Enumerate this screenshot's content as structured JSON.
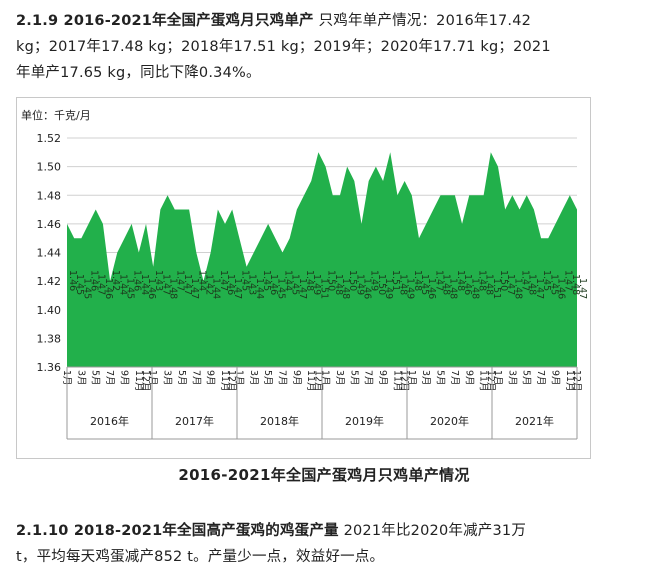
{
  "section1": {
    "heading": "2.1.9 2016-2021年全国产蛋鸡月只鸡单产",
    "text_line1": " 只鸡年单产情况：2016年17.42",
    "text_line2": "kg；2017年17.48 kg；2018年17.51 kg；2019年；2020年17.71 kg；2021",
    "text_line3": "年单产17.65 kg，同比下降0.34%。"
  },
  "caption": "2016-2021年全国产蛋鸡月只鸡单产情况",
  "section2": {
    "heading": "2.1.10 2018-2021年全国高产蛋鸡的鸡蛋产量",
    "text_line1": " 2021年比2020年减产31万",
    "text_line2": "t，平均每天鸡蛋减产852 t。产量少一点，效益好一点。"
  },
  "chart_data": {
    "type": "area",
    "unit_label": "单位：千克/月",
    "ylim": [
      1.36,
      1.52
    ],
    "yticks": [
      "1.36",
      "1.38",
      "1.40",
      "1.42",
      "1.44",
      "1.46",
      "1.48",
      "1.50",
      "1.52"
    ],
    "grid": true,
    "fill_color": "#22b04b",
    "years": [
      "2016年",
      "2017年",
      "2018年",
      "2019年",
      "2020年",
      "2021年"
    ],
    "month_labels": [
      "1月",
      "2月",
      "3月",
      "4月",
      "5月",
      "6月",
      "7月",
      "8月",
      "9月",
      "10月",
      "11月",
      "12月"
    ],
    "series": [
      {
        "values": [
          1.46,
          1.45,
          1.45,
          1.46,
          1.47,
          1.46,
          1.42,
          1.44,
          1.45,
          1.46,
          1.44,
          1.46,
          1.43,
          1.47,
          1.48,
          1.47,
          1.47,
          1.47,
          1.44,
          1.42,
          1.44,
          1.47,
          1.46,
          1.47,
          1.45,
          1.43,
          1.44,
          1.45,
          1.46,
          1.45,
          1.44,
          1.45,
          1.47,
          1.48,
          1.49,
          1.51,
          1.5,
          1.48,
          1.48,
          1.5,
          1.49,
          1.46,
          1.49,
          1.5,
          1.49,
          1.51,
          1.48,
          1.49,
          1.48,
          1.45,
          1.46,
          1.47,
          1.48,
          1.48,
          1.48,
          1.46,
          1.48,
          1.48,
          1.48,
          1.51,
          1.5,
          1.47,
          1.48,
          1.47,
          1.48,
          1.47,
          1.45,
          1.45,
          1.46,
          1.47,
          1.48,
          1.47
        ],
        "data_labels": [
          "1.46",
          "1.45",
          "1.45",
          "1.46",
          "1.47",
          "1.46",
          "1.42",
          "1.44",
          "1.45",
          "1.46",
          "1.44",
          "1.46",
          "1.43",
          "1.47",
          "1.48",
          "1.47",
          "1.47",
          "1.47",
          "1.44",
          "1.42",
          "1.44",
          "1.47",
          "1.46",
          "1.47",
          "1.45",
          "1.43",
          "1.44",
          "1.45",
          "1.46",
          "1.45",
          "1.44",
          "1.45",
          "1.47",
          "1.48",
          "1.49",
          "1.51",
          "1.50",
          "1.48",
          "1.48",
          "1.50",
          "1.49",
          "1.46",
          "1.49",
          "1.50",
          "1.49",
          "1.51",
          "1.48",
          "1.49",
          "1.48",
          "1.45",
          "1.46",
          "1.47",
          "1.48",
          "1.48",
          "1.48",
          "1.46",
          "1.48",
          "1.48",
          "1.48",
          "1.51",
          "1.50",
          "1.47",
          "1.48",
          "1.47",
          "1.48",
          "1.47",
          "1.45",
          "1.45",
          "1.46",
          "1.47",
          "1.48",
          "1.47"
        ]
      }
    ]
  }
}
